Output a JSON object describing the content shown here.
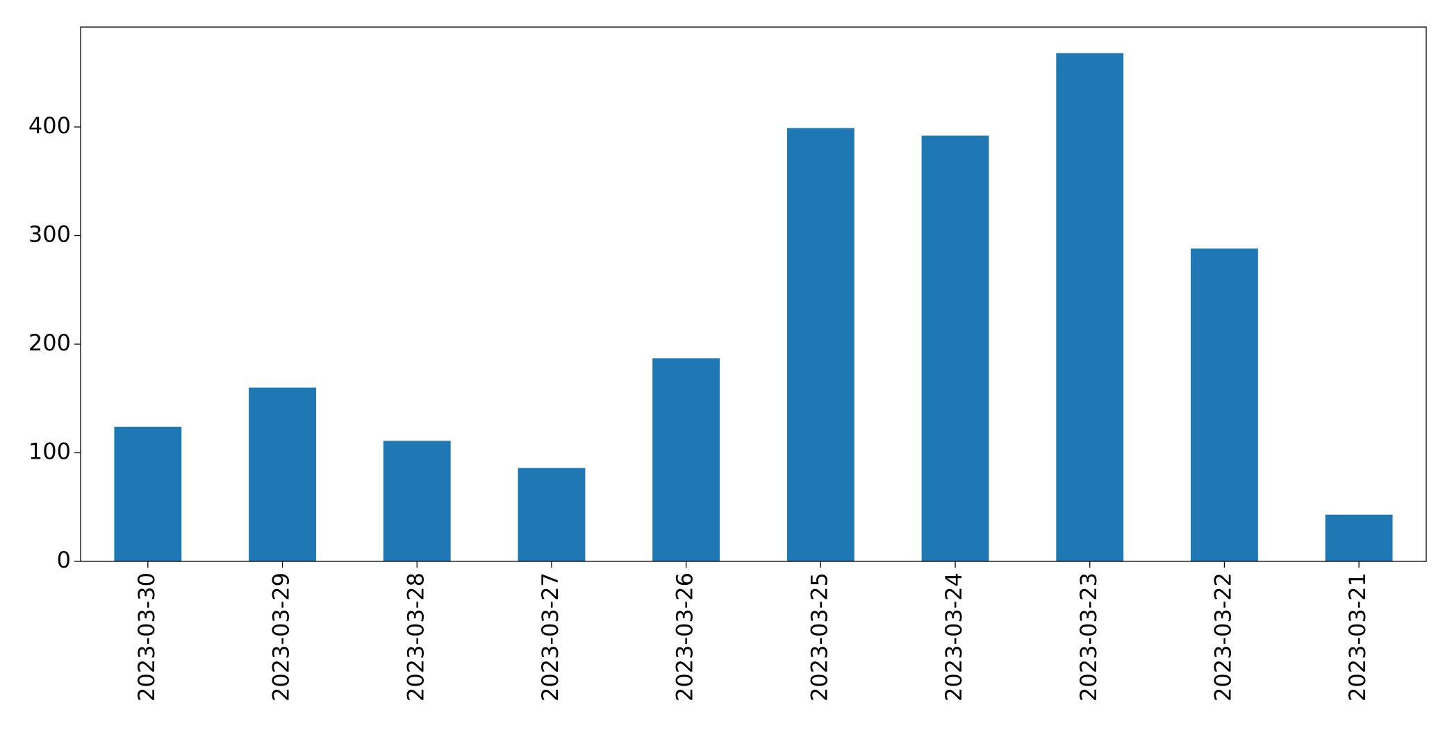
{
  "chart_data": {
    "type": "bar",
    "categories": [
      "2023-03-30",
      "2023-03-29",
      "2023-03-28",
      "2023-03-27",
      "2023-03-26",
      "2023-03-25",
      "2023-03-24",
      "2023-03-23",
      "2023-03-22",
      "2023-03-21"
    ],
    "values": [
      124,
      160,
      111,
      86,
      187,
      399,
      392,
      468,
      288,
      43
    ],
    "color": "#1f77b4",
    "ylim": [
      0,
      492
    ],
    "yticks": [
      0,
      100,
      200,
      300,
      400
    ],
    "grid": false
  }
}
